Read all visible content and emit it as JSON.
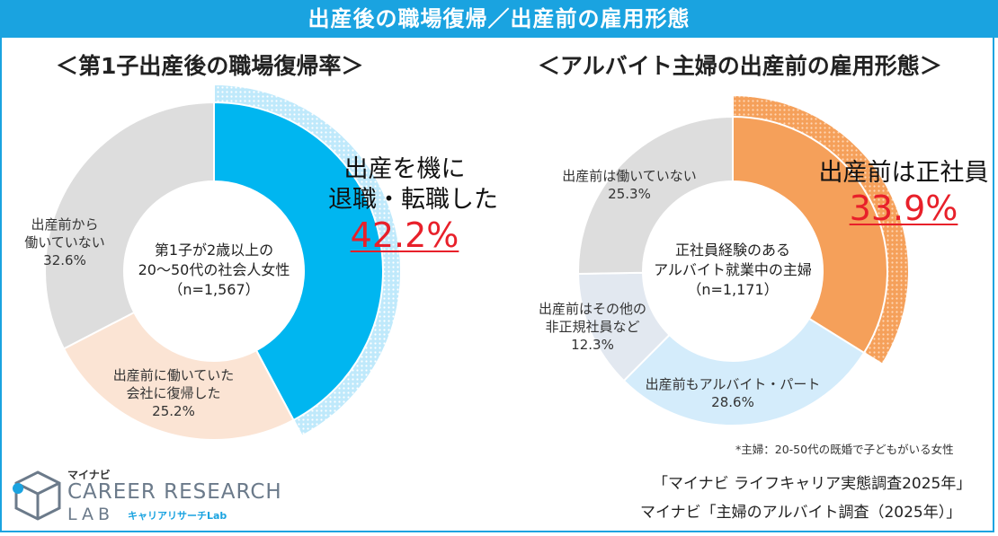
{
  "header": {
    "title": "出産後の職場復帰／出産前の雇用形態"
  },
  "chart_data": [
    {
      "type": "pie",
      "title": "＜第1子出産後の職場復帰率＞",
      "center_label": [
        "第1子が2歳以上の",
        "20～50代の社会人女性",
        "（n=1,567）"
      ],
      "slices": [
        {
          "name": "出産を機に退職・転職した",
          "label_lines": [
            "出産を機に",
            "退職・転職した"
          ],
          "value": 42.2,
          "display": "42.2%",
          "color": "#00b6f0",
          "highlight": true
        },
        {
          "name": "出産前に働いていた会社に復帰した",
          "label_lines": [
            "出産前に働いていた",
            "会社に復帰した",
            "25.2%"
          ],
          "value": 25.2,
          "color": "#fbe4d4"
        },
        {
          "name": "出産前から働いていない",
          "label_lines": [
            "出産前から",
            "働いていない",
            "32.6%"
          ],
          "value": 32.6,
          "color": "#dddddd"
        }
      ]
    },
    {
      "type": "pie",
      "title": "＜アルバイト主婦の出産前の雇用形態＞",
      "center_label": [
        "正社員経験のある",
        "アルバイト就業中の主婦",
        "（n=1,171）"
      ],
      "slices": [
        {
          "name": "出産前は正社員",
          "label_lines": [
            "出産前は正社員"
          ],
          "value": 33.9,
          "display": "33.9%",
          "color": "#f5a05a",
          "highlight": true
        },
        {
          "name": "出産前もアルバイト・パート",
          "label_lines": [
            "出産前もアルバイト・パート",
            "28.6%"
          ],
          "value": 28.6,
          "color": "#d4ecfb"
        },
        {
          "name": "出産前はその他の非正規社員など",
          "label_lines": [
            "出産前はその他の",
            "非正規社員など",
            "12.3%"
          ],
          "value": 12.3,
          "color": "#e2e8f0"
        },
        {
          "name": "出産前は働いていない",
          "label_lines": [
            "出産前は働いていない",
            "25.3%"
          ],
          "value": 25.3,
          "color": "#dddddd"
        }
      ]
    }
  ],
  "footnote": "*主婦：20-50代の既婚で子どもがいる女性",
  "sources": [
    "「マイナビ ライフキャリア実態調査2025年」",
    "マイナビ「主婦のアルバイト調査（2025年）」"
  ],
  "logo": {
    "line1": "マイナビ",
    "line2": "CAREER RESEARCH",
    "line3": "LAB",
    "line4": "キャリアリサーチLab"
  },
  "colors": {
    "accent": "#1aa3e0",
    "value_red": "#e8202a"
  }
}
